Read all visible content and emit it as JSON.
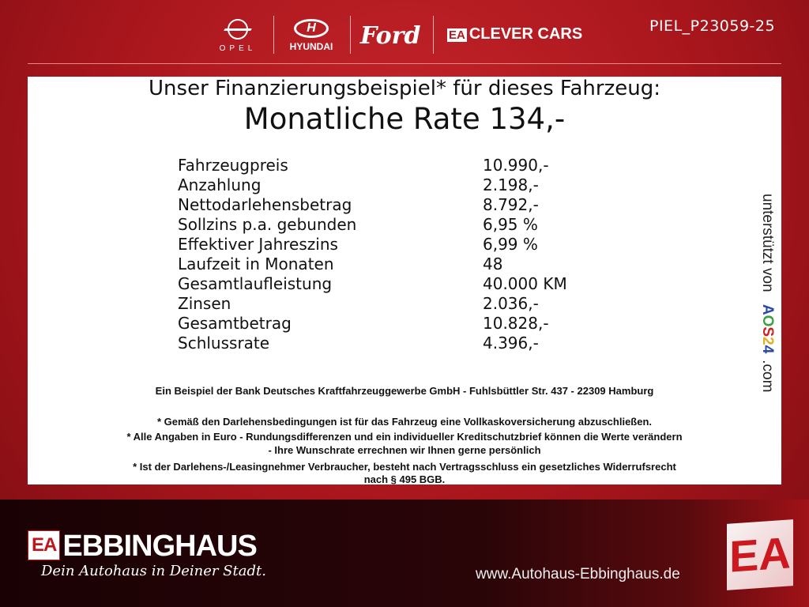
{
  "header": {
    "brands": [
      "OPEL",
      "HYUNDAI",
      "Ford",
      "CLEVER CARS"
    ],
    "clever_prefix": "EA",
    "code": "PIEL_P23059-25"
  },
  "offer": {
    "title": "Unser Finanzierungsbeispiel* für dieses Fahrzeug:",
    "rate": "Monatliche Rate 134,-",
    "rows": [
      {
        "label": "Fahrzeugpreis",
        "value": "10.990,-"
      },
      {
        "label": "Anzahlung",
        "value": "2.198,-"
      },
      {
        "label": "Nettodarlehensbetrag",
        "value": "8.792,-"
      },
      {
        "label": "Sollzins p.a. gebunden",
        "value": "6,95 %"
      },
      {
        "label": "Effektiver Jahreszins",
        "value": "6,99 %"
      },
      {
        "label": "Laufzeit in Monaten",
        "value": "48"
      },
      {
        "label": "Gesamtlaufleistung",
        "value": "40.000 KM"
      },
      {
        "label": "Zinsen",
        "value": "2.036,-"
      },
      {
        "label": "Gesamtbetrag",
        "value": "10.828,-"
      },
      {
        "label": "Schlussrate",
        "value": "4.396,-"
      }
    ],
    "bank": "Ein Beispiel der Bank Deutsches Kraftfahrzeuggewerbe GmbH - Fuhlsbüttler Str. 437 - 22309 Hamburg",
    "notes": [
      "* Gemäß den Darlehensbedingungen ist für das Fahrzeug eine Vollkaskoversicherung abzuschließen.",
      "* Alle Angaben in Euro - Rundungsdifferenzen und ein individueller Kreditschutzbrief können die Werte verändern",
      "- Ihre Wunschrate errechnen wir Ihnen gerne persönlich",
      "* Ist der Darlehens-/Leasingnehmer Verbraucher, besteht nach Vertragsschluss ein gesetzliches Widerrufsrecht",
      "nach § 495 BGB."
    ],
    "support": {
      "prefix": "unterstützt von",
      "brand": "AOS24",
      "suffix": ".com",
      "colors": [
        "#2a4aa8",
        "#3aa040",
        "#d02020",
        "#e0b020",
        "#2a4aa8"
      ]
    }
  },
  "footer": {
    "logo_prefix": "EA",
    "name": "EBBINGHAUS",
    "slogan": "Dein Autohaus in Deiner Stadt.",
    "url": "www.Autohaus-Ebbinghaus.de",
    "big_logo": "EA"
  }
}
